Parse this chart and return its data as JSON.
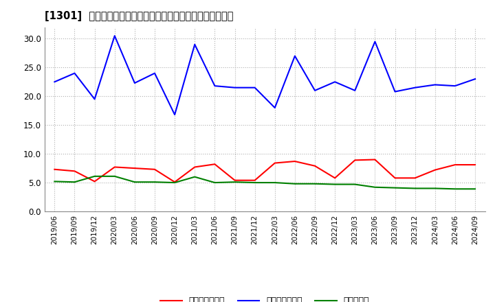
{
  "title": "[1301]  売上債権回転率、買入債務回転率、在庫回転率の推移",
  "dates": [
    "2019/06",
    "2019/09",
    "2019/12",
    "2020/03",
    "2020/06",
    "2020/09",
    "2020/12",
    "2021/03",
    "2021/06",
    "2021/09",
    "2021/12",
    "2022/03",
    "2022/06",
    "2022/09",
    "2022/12",
    "2023/03",
    "2023/06",
    "2023/09",
    "2023/12",
    "2024/03",
    "2024/06",
    "2024/09"
  ],
  "receivables": [
    7.3,
    7.0,
    5.2,
    7.7,
    7.5,
    7.3,
    5.1,
    7.7,
    8.2,
    5.4,
    5.4,
    8.4,
    8.7,
    7.9,
    5.8,
    8.9,
    9.0,
    5.8,
    5.8,
    7.2,
    8.1,
    8.1
  ],
  "payables": [
    22.5,
    24.0,
    19.5,
    30.5,
    22.3,
    24.0,
    16.8,
    29.0,
    21.8,
    21.5,
    21.5,
    18.0,
    27.0,
    21.0,
    22.5,
    21.0,
    29.5,
    20.8,
    21.5,
    22.0,
    21.8,
    23.0
  ],
  "inventory": [
    5.2,
    5.1,
    6.1,
    6.1,
    5.1,
    5.1,
    5.0,
    6.0,
    5.0,
    5.1,
    5.0,
    5.0,
    4.8,
    4.8,
    4.7,
    4.7,
    4.2,
    4.1,
    4.0,
    4.0,
    3.9,
    3.9
  ],
  "receivables_color": "#ff0000",
  "payables_color": "#0000ff",
  "inventory_color": "#008000",
  "ylim": [
    0.0,
    32.0
  ],
  "yticks": [
    0.0,
    5.0,
    10.0,
    15.0,
    20.0,
    25.0,
    30.0
  ],
  "legend_labels": [
    "売上債権回転率",
    "買入債務回転率",
    "在庫回転率"
  ],
  "bg_color": "#ffffff",
  "plot_bg_color": "#ffffff"
}
